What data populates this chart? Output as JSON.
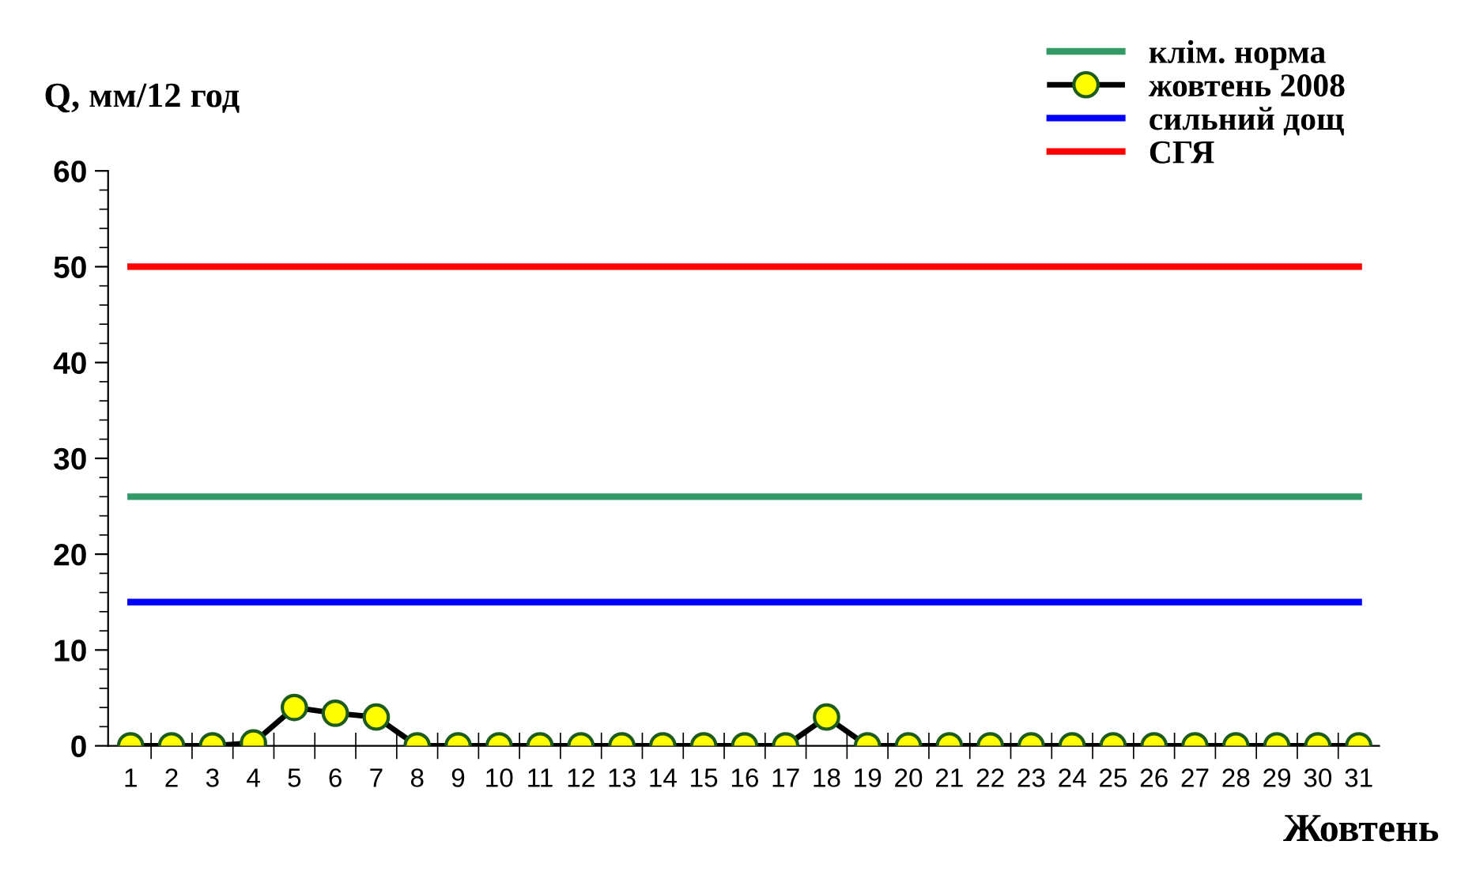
{
  "chart_data": {
    "type": "line",
    "ylabel": "Q, мм/12 год",
    "xlabel": "Жовтень",
    "categories": [
      "1",
      "2",
      "3",
      "4",
      "5",
      "6",
      "7",
      "8",
      "9",
      "10",
      "11",
      "12",
      "13",
      "14",
      "15",
      "16",
      "17",
      "18",
      "19",
      "20",
      "21",
      "22",
      "23",
      "24",
      "25",
      "26",
      "27",
      "28",
      "29",
      "30",
      "31"
    ],
    "series": [
      {
        "name": "клім. норма",
        "color": "#339966",
        "marker": "none",
        "values": [
          26,
          26,
          26,
          26,
          26,
          26,
          26,
          26,
          26,
          26,
          26,
          26,
          26,
          26,
          26,
          26,
          26,
          26,
          26,
          26,
          26,
          26,
          26,
          26,
          26,
          26,
          26,
          26,
          26,
          26,
          26
        ]
      },
      {
        "name": "жовтень 2008",
        "color": "#000000",
        "marker": "circle",
        "values": [
          0,
          0,
          0,
          0.3,
          4.0,
          3.4,
          3.0,
          0,
          0,
          0,
          0,
          0,
          0,
          0,
          0,
          0,
          0,
          3.0,
          0,
          0,
          0,
          0,
          0,
          0,
          0,
          0,
          0,
          0,
          0,
          0,
          0
        ]
      },
      {
        "name": "сильний дощ",
        "color": "#0000ff",
        "marker": "none",
        "values": [
          15,
          15,
          15,
          15,
          15,
          15,
          15,
          15,
          15,
          15,
          15,
          15,
          15,
          15,
          15,
          15,
          15,
          15,
          15,
          15,
          15,
          15,
          15,
          15,
          15,
          15,
          15,
          15,
          15,
          15,
          15
        ]
      },
      {
        "name": "СГЯ",
        "color": "#ff0000",
        "marker": "none",
        "values": [
          50,
          50,
          50,
          50,
          50,
          50,
          50,
          50,
          50,
          50,
          50,
          50,
          50,
          50,
          50,
          50,
          50,
          50,
          50,
          50,
          50,
          50,
          50,
          50,
          50,
          50,
          50,
          50,
          50,
          50,
          50
        ]
      }
    ],
    "ylim": [
      0,
      60
    ],
    "yticks": [
      0,
      {
        "value": 2,
        "label": null
      },
      {
        "value": 4,
        "label": null
      },
      {
        "value": 6,
        "label": null
      },
      {
        "value": 8,
        "label": null
      },
      10,
      {
        "value": 12,
        "label": null
      },
      {
        "value": 14,
        "label": null
      },
      {
        "value": 16,
        "label": null
      },
      {
        "value": 18,
        "label": null
      },
      20,
      {
        "value": 22,
        "label": null
      },
      {
        "value": 24,
        "label": null
      },
      {
        "value": 26,
        "label": null
      },
      {
        "value": 28,
        "label": null
      },
      30,
      {
        "value": 32,
        "label": null
      },
      {
        "value": 34,
        "label": null
      },
      {
        "value": 36,
        "label": null
      },
      {
        "value": 38,
        "label": null
      },
      40,
      {
        "value": 42,
        "label": null
      },
      {
        "value": 44,
        "label": null
      },
      {
        "value": 46,
        "label": null
      },
      {
        "value": 48,
        "label": null
      },
      50,
      {
        "value": 52,
        "label": null
      },
      {
        "value": 54,
        "label": null
      },
      {
        "value": 56,
        "label": null
      },
      {
        "value": 58,
        "label": null
      },
      60
    ],
    "grid": false,
    "legend": "top right"
  }
}
